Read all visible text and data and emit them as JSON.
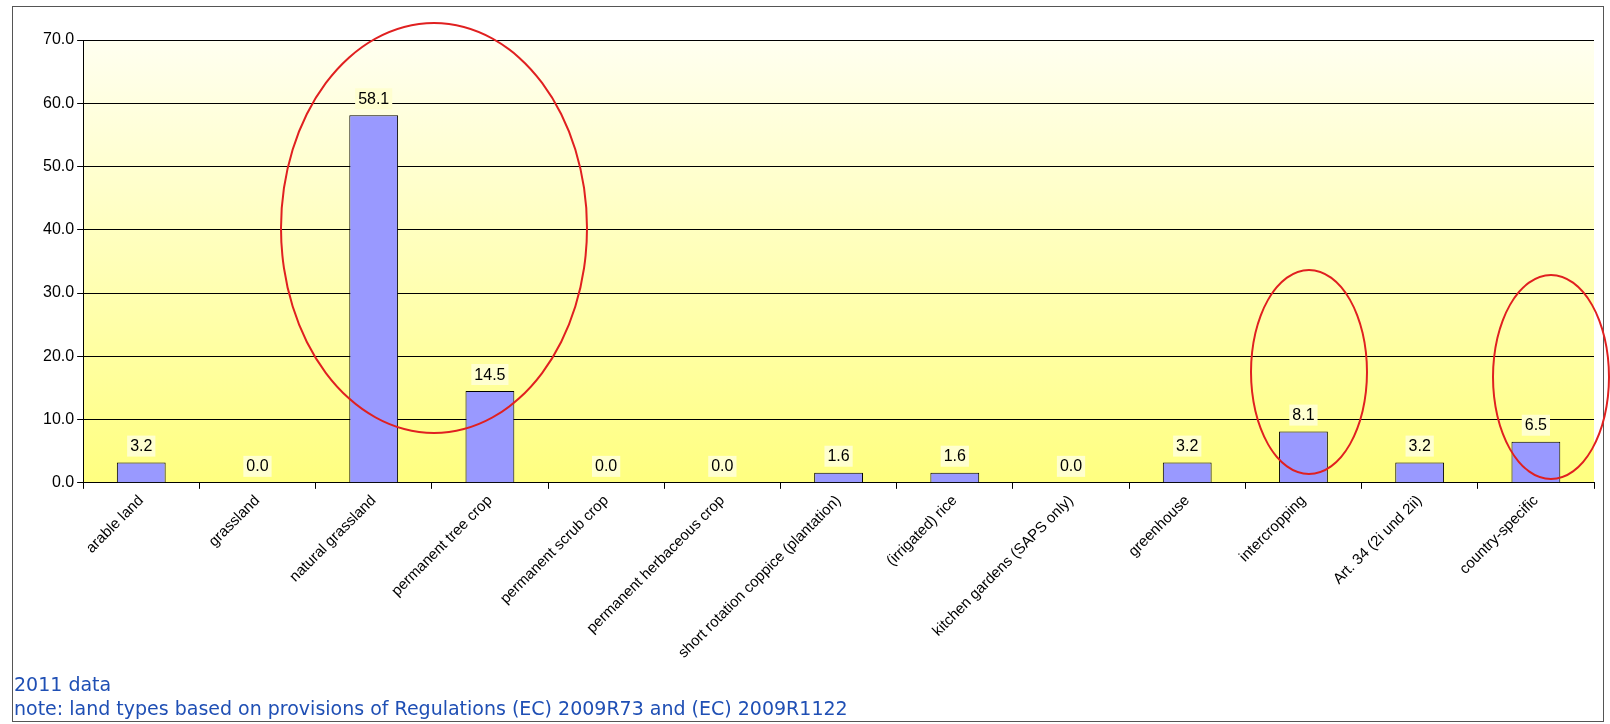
{
  "chart_data": {
    "type": "bar",
    "categories": [
      "arable land",
      "grassland",
      "natural grassland",
      "permanent tree crop",
      "permanent scrub crop",
      "permanent herbaceous crop",
      "short rotation coppice (plantation)",
      "(irrigated) rice",
      "kitchen gardens (SAPS only)",
      "greenhouse",
      "intercropping",
      "Art. 34 (2i und 2ii)",
      "country-specific"
    ],
    "values": [
      3.2,
      0.0,
      58.1,
      14.5,
      0.0,
      0.0,
      1.6,
      1.6,
      0.0,
      3.2,
      8.1,
      3.2,
      6.5
    ],
    "value_labels": [
      "3.2",
      "0.0",
      "58.1",
      "14.5",
      "0.0",
      "0.0",
      "1.6",
      "1.6",
      "0.0",
      "3.2",
      "8.1",
      "3.2",
      "6.5"
    ],
    "color": "#9999ff",
    "ylim": [
      0,
      70
    ],
    "yticks": [
      {
        "value": 0,
        "label": "0.0"
      },
      {
        "value": 10,
        "label": "10.0"
      },
      {
        "value": 20,
        "label": "20.0"
      },
      {
        "value": 30,
        "label": "30.0"
      },
      {
        "value": 40,
        "label": "40.0"
      },
      {
        "value": 50,
        "label": "50.0"
      },
      {
        "value": 60,
        "label": "60.0"
      },
      {
        "value": 70,
        "label": "70.0"
      }
    ],
    "grid": "y",
    "legend": false,
    "annotations": [
      "2011 data",
      "note: land types based on provisions of Regulations (EC) 2009R73 and (EC) 2009R1122"
    ]
  }
}
